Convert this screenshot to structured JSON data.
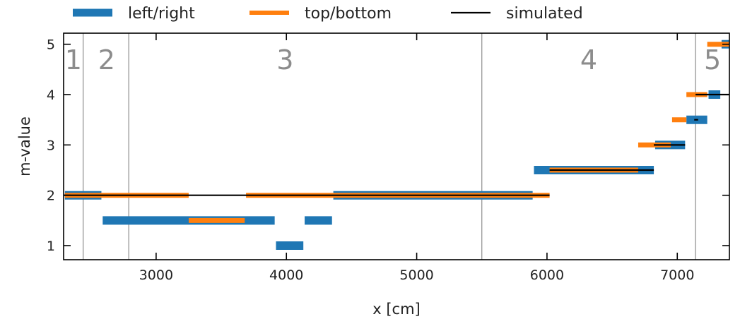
{
  "chart_data": {
    "type": "line",
    "xlabel": "x [cm]",
    "ylabel": "m-value",
    "xlim": [
      2290,
      7400
    ],
    "ylim": [
      0.72,
      5.22
    ],
    "xticks": [
      3000,
      4000,
      5000,
      6000,
      7000
    ],
    "yticks": [
      1,
      2,
      3,
      4,
      5
    ],
    "legend": {
      "placement": "top",
      "entries": [
        {
          "label": "left/right",
          "color": "#1f77b4"
        },
        {
          "label": "top/bottom",
          "color": "#ff7f0e"
        },
        {
          "label": "simulated",
          "color": "#000000"
        }
      ]
    },
    "region_boundaries": [
      2440,
      2790,
      5500,
      7140
    ],
    "regions": [
      {
        "label": "1",
        "x": 2365,
        "y": 4.7
      },
      {
        "label": "2",
        "x": 2620,
        "y": 4.7
      },
      {
        "label": "3",
        "x": 3990,
        "y": 4.7
      },
      {
        "label": "4",
        "x": 6320,
        "y": 4.7
      },
      {
        "label": "5",
        "x": 7270,
        "y": 4.7
      }
    ],
    "series": [
      {
        "name": "left/right",
        "color": "#1f77b4",
        "segments": [
          {
            "x": [
              2300,
              2580
            ],
            "y": 2.0
          },
          {
            "x": [
              2590,
              3910
            ],
            "y": 1.5
          },
          {
            "x": [
              3920,
              4130
            ],
            "y": 1.0
          },
          {
            "x": [
              4140,
              4350
            ],
            "y": 1.5
          },
          {
            "x": [
              4360,
              5890
            ],
            "y": 2.0
          },
          {
            "x": [
              5900,
              6820
            ],
            "y": 2.5
          },
          {
            "x": [
              6830,
              7060
            ],
            "y": 3.0
          },
          {
            "x": [
              7070,
              7230
            ],
            "y": 3.5
          },
          {
            "x": [
              7240,
              7330
            ],
            "y": 4.0
          },
          {
            "x": [
              7340,
              7400
            ],
            "y": 5.0
          }
        ]
      },
      {
        "name": "top/bottom",
        "color": "#ff7f0e",
        "segments": [
          {
            "x": [
              2300,
              3250
            ],
            "y": 2.0
          },
          {
            "x": [
              3250,
              3680
            ],
            "y": 1.5
          },
          {
            "x": [
              3690,
              6020
            ],
            "y": 2.0
          },
          {
            "x": [
              6020,
              6700
            ],
            "y": 2.5
          },
          {
            "x": [
              6700,
              6950
            ],
            "y": 3.0
          },
          {
            "x": [
              6960,
              7070
            ],
            "y": 3.5
          },
          {
            "x": [
              7070,
              7230
            ],
            "y": 4.0
          },
          {
            "x": [
              7230,
              7400
            ],
            "y": 5.0
          }
        ]
      },
      {
        "name": "simulated",
        "color": "#000000",
        "segments": [
          {
            "x": [
              2290,
              6020
            ],
            "y": 2.0
          },
          {
            "x": [
              6020,
              6820
            ],
            "y": 2.5
          },
          {
            "x": [
              6820,
              7060
            ],
            "y": 3.0
          },
          {
            "x": [
              7130,
              7160
            ],
            "y": 3.5
          },
          {
            "x": [
              7140,
              7400
            ],
            "y": 4.0
          }
        ]
      }
    ]
  }
}
